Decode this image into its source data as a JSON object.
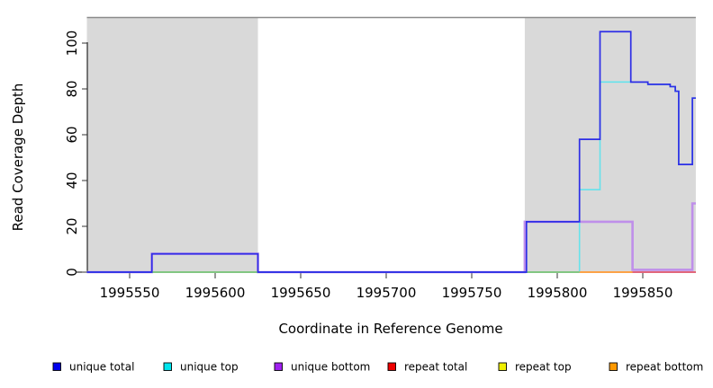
{
  "figure": {
    "x_axis_title": "Coordinate in Reference Genome",
    "y_axis_title": "Read Coverage Depth"
  },
  "chart_data": {
    "type": "line",
    "subtype": "step-coverage",
    "title": "",
    "xlabel": "Coordinate in Reference Genome",
    "ylabel": "Read Coverage Depth",
    "xlim": [
      1995525,
      1995881
    ],
    "ylim": [
      0,
      108
    ],
    "x_ticks": [
      1995550,
      1995600,
      1995650,
      1995700,
      1995750,
      1995800,
      1995850
    ],
    "y_ticks": [
      0,
      20,
      40,
      60,
      80,
      100
    ],
    "grid": false,
    "plot_background": "#ffffff",
    "shaded_regions": [
      {
        "x0": 1995525,
        "x1": 1995625,
        "color": "#D9D9D9"
      },
      {
        "x0": 1995781,
        "x1": 1995881,
        "color": "#D9D9D9"
      }
    ],
    "region_top_line_color": "#8A8A8A",
    "series": [
      {
        "name": "unique total",
        "legend_color": "#0000EE",
        "line_color": "#2E2EE6",
        "line_width": 1.7,
        "steps": [
          [
            1995525,
            0
          ],
          [
            1995563,
            8
          ],
          [
            1995625,
            0
          ],
          [
            1995782,
            22
          ],
          [
            1995813,
            58
          ],
          [
            1995825,
            105
          ],
          [
            1995843,
            83
          ],
          [
            1995853,
            82
          ],
          [
            1995866,
            81
          ],
          [
            1995869,
            79
          ],
          [
            1995871,
            47
          ],
          [
            1995879,
            76
          ]
        ]
      },
      {
        "name": "unique top",
        "legend_color": "#00E5EE",
        "line_color": "#66E2EC",
        "line_width": 1.6,
        "steps": [
          [
            1995525,
            0
          ],
          [
            1995813,
            36
          ],
          [
            1995825,
            83
          ],
          [
            1995853,
            82
          ],
          [
            1995866,
            81
          ],
          [
            1995869,
            79
          ],
          [
            1995871,
            47
          ],
          [
            1995879,
            76
          ]
        ]
      },
      {
        "name": "unique bottom",
        "legend_color": "#A020F0",
        "line_color": "#BF8FEA",
        "line_width": 2.6,
        "steps": [
          [
            1995525,
            0
          ],
          [
            1995563,
            8
          ],
          [
            1995625,
            0
          ],
          [
            1995781,
            22
          ],
          [
            1995844,
            1
          ],
          [
            1995879,
            30
          ]
        ]
      },
      {
        "name": "repeat total",
        "legend_color": "#EE0000",
        "line_color": "#E0607E",
        "line_width": 1.6,
        "steps": [
          [
            1995525,
            0
          ]
        ]
      },
      {
        "name": "repeat top",
        "legend_color": "#F0F000",
        "line_color": "#E8E85A",
        "line_width": 1.6,
        "steps": [
          [
            1995525,
            0
          ]
        ]
      },
      {
        "name": "repeat bottom",
        "legend_color": "#FF9900",
        "line_color": "#FFA441",
        "line_width": 1.6,
        "steps": [
          [
            1995525,
            0
          ]
        ]
      }
    ],
    "baseline_segments": [
      {
        "x0": 1995525,
        "x1": 1995563,
        "color": "#6456E6"
      },
      {
        "x0": 1995563,
        "x1": 1995625,
        "color": "#7CC87C"
      },
      {
        "x0": 1995625,
        "x1": 1995782,
        "color": "#6456E6"
      },
      {
        "x0": 1995782,
        "x1": 1995813,
        "color": "#7CC87C"
      },
      {
        "x0": 1995813,
        "x1": 1995844,
        "color": "#FFA441"
      },
      {
        "x0": 1995844,
        "x1": 1995881,
        "color": "#E0607E"
      }
    ],
    "legend_position": "bottom",
    "legend": [
      {
        "label": "unique total",
        "color": "#0000EE"
      },
      {
        "label": "unique top",
        "color": "#00E5EE"
      },
      {
        "label": "unique bottom",
        "color": "#A020F0"
      },
      {
        "label": "repeat total",
        "color": "#EE0000"
      },
      {
        "label": "repeat top",
        "color": "#F0F000"
      },
      {
        "label": "repeat bottom",
        "color": "#FF9900"
      }
    ]
  }
}
